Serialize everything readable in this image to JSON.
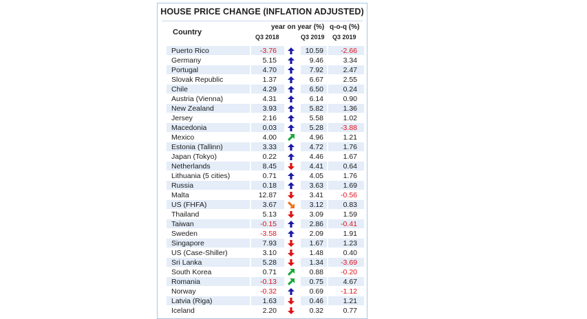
{
  "table": {
    "title": "HOUSE PRICE CHANGE (INFLATION ADJUSTED)",
    "headers": {
      "country": "Country",
      "yoy": "year on year (%)",
      "qoq": "q-o-q (%)",
      "q3_2018": "Q3 2018",
      "q3_2019_yoy": "Q3 2019",
      "q3_2019_qoq": "Q3 2019"
    },
    "arrow_colors": {
      "up": "#1a1aa6",
      "down": "#e01010",
      "up-right": "#18a83a",
      "down-right": "#e8741a"
    },
    "rows": [
      {
        "country": "Puerto Rico",
        "q3_2018": "-3.76",
        "trend": "up",
        "q3_2019": "10.59",
        "qoq": "-2.66"
      },
      {
        "country": "Germany",
        "q3_2018": "5.15",
        "trend": "up",
        "q3_2019": "9.46",
        "qoq": "3.34"
      },
      {
        "country": "Portugal",
        "q3_2018": "4.70",
        "trend": "up",
        "q3_2019": "7.92",
        "qoq": "2.47"
      },
      {
        "country": "Slovak Republic",
        "q3_2018": "1.37",
        "trend": "up",
        "q3_2019": "6.67",
        "qoq": "2.55"
      },
      {
        "country": "Chile",
        "q3_2018": "4.29",
        "trend": "up",
        "q3_2019": "6.50",
        "qoq": "0.24"
      },
      {
        "country": "Austria (Vienna)",
        "q3_2018": "4.31",
        "trend": "up",
        "q3_2019": "6.14",
        "qoq": "0.90"
      },
      {
        "country": "New Zealand",
        "q3_2018": "3.93",
        "trend": "up",
        "q3_2019": "5.82",
        "qoq": "1.36"
      },
      {
        "country": "Jersey",
        "q3_2018": "2.16",
        "trend": "up",
        "q3_2019": "5.58",
        "qoq": "1.02"
      },
      {
        "country": "Macedonia",
        "q3_2018": "0.03",
        "trend": "up",
        "q3_2019": "5.28",
        "qoq": "-3.88"
      },
      {
        "country": "Mexico",
        "q3_2018": "4.00",
        "trend": "up-right",
        "q3_2019": "4.96",
        "qoq": "1.21"
      },
      {
        "country": "Estonia (Tallinn)",
        "q3_2018": "3.33",
        "trend": "up",
        "q3_2019": "4.72",
        "qoq": "1.76"
      },
      {
        "country": "Japan (Tokyo)",
        "q3_2018": "0.22",
        "trend": "up",
        "q3_2019": "4.46",
        "qoq": "1.67"
      },
      {
        "country": "Netherlands",
        "q3_2018": "8.45",
        "trend": "down",
        "q3_2019": "4.41",
        "qoq": "0.64"
      },
      {
        "country": "Lithuania (5 cities)",
        "q3_2018": "0.71",
        "trend": "up",
        "q3_2019": "4.05",
        "qoq": "1.76"
      },
      {
        "country": "Russia",
        "q3_2018": "0.18",
        "trend": "up",
        "q3_2019": "3.63",
        "qoq": "1.69"
      },
      {
        "country": "Malta",
        "q3_2018": "12.87",
        "trend": "down",
        "q3_2019": "3.41",
        "qoq": "-0.56"
      },
      {
        "country": "US (FHFA)",
        "q3_2018": "3.67",
        "trend": "down-right",
        "q3_2019": "3.12",
        "qoq": "0.83"
      },
      {
        "country": "Thailand",
        "q3_2018": "5.13",
        "trend": "down",
        "q3_2019": "3.09",
        "qoq": "1.59"
      },
      {
        "country": "Taiwan",
        "q3_2018": "-0.15",
        "trend": "up",
        "q3_2019": "2.86",
        "qoq": "-0.41"
      },
      {
        "country": "Sweden",
        "q3_2018": "-3.58",
        "trend": "up",
        "q3_2019": "2.09",
        "qoq": "1.91"
      },
      {
        "country": "Singapore",
        "q3_2018": "7.93",
        "trend": "down",
        "q3_2019": "1.67",
        "qoq": "1.23"
      },
      {
        "country": "US (Case-Shiller)",
        "q3_2018": "3.10",
        "trend": "down",
        "q3_2019": "1.48",
        "qoq": "0.40"
      },
      {
        "country": "Sri Lanka",
        "q3_2018": "5.28",
        "trend": "down",
        "q3_2019": "1.34",
        "qoq": "-3.69"
      },
      {
        "country": "South Korea",
        "q3_2018": "0.71",
        "trend": "up-right",
        "q3_2019": "0.88",
        "qoq": "-0.20"
      },
      {
        "country": "Romania",
        "q3_2018": "-0.13",
        "trend": "up-right",
        "q3_2019": "0.75",
        "qoq": "4.67"
      },
      {
        "country": "Norway",
        "q3_2018": "-0.32",
        "trend": "up",
        "q3_2019": "0.69",
        "qoq": "-1.12"
      },
      {
        "country": "Latvia (Riga)",
        "q3_2018": "1.63",
        "trend": "down",
        "q3_2019": "0.46",
        "qoq": "1.21"
      },
      {
        "country": "Iceland",
        "q3_2018": "2.20",
        "trend": "down",
        "q3_2019": "0.32",
        "qoq": "0.77"
      }
    ]
  }
}
